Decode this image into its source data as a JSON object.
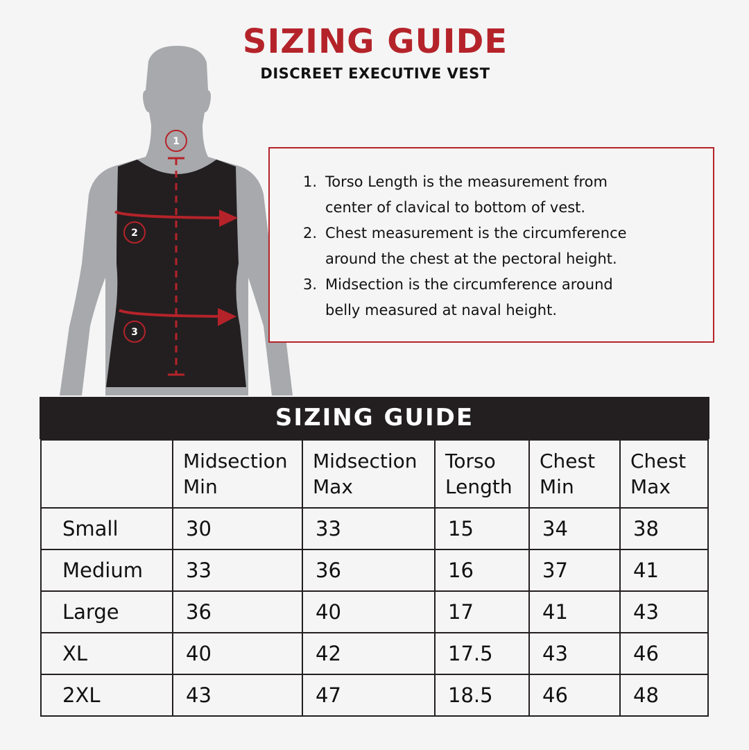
{
  "header": {
    "title": "SIZING GUIDE",
    "subtitle": "DISCREET EXECUTIVE VEST"
  },
  "figure": {
    "markers": [
      "1",
      "2",
      "3"
    ],
    "accent_color": "#b5232a",
    "vest_color": "#231f20",
    "body_color": "#a7a9ac"
  },
  "notes": [
    {
      "num": "1.",
      "line1": "Torso Length is the measurement from",
      "line2": "center of clavical to bottom of vest."
    },
    {
      "num": "2.",
      "line1": "Chest measurement is the circumference",
      "line2": "around the chest at the pectoral height."
    },
    {
      "num": "3.",
      "line1": "Midsection is the circumference around",
      "line2": "belly measured at naval height."
    }
  ],
  "table": {
    "title": "SIZING GUIDE",
    "columns": [
      {
        "l1": "",
        "l2": ""
      },
      {
        "l1": "Midsection",
        "l2": "Min"
      },
      {
        "l1": "Midsection",
        "l2": "Max"
      },
      {
        "l1": "Torso",
        "l2": "Length"
      },
      {
        "l1": "Chest",
        "l2": "Min"
      },
      {
        "l1": "Chest",
        "l2": "Max"
      }
    ],
    "rows": [
      [
        "Small",
        "30",
        "33",
        "15",
        "34",
        "38"
      ],
      [
        "Medium",
        "33",
        "36",
        "16",
        "37",
        "41"
      ],
      [
        "Large",
        "36",
        "40",
        "17",
        "41",
        "43"
      ],
      [
        "XL",
        "40",
        "42",
        "17.5",
        "43",
        "46"
      ],
      [
        "2XL",
        "43",
        "47",
        "18.5",
        "46",
        "48"
      ]
    ]
  }
}
